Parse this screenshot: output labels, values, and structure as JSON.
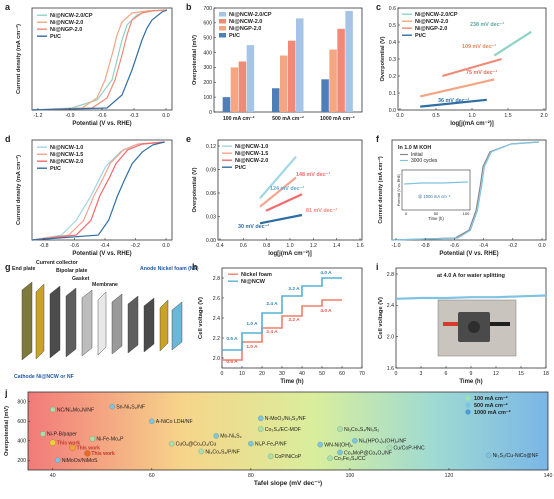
{
  "colors": {
    "ncw_cp": "#8fd3c7",
    "ncw": "#f4a582",
    "ngp": "#f08a76",
    "ptc": "#2f6ea5",
    "ncw1": "#9fd6e6",
    "ncw15": "#f6a38f",
    "ncw20": "#f26b6b",
    "nickel_foam": "#f07f6b",
    "ni_ncw_h": "#55b0d6",
    "bubble_green": "#a8e0b0",
    "bubble_blue": "#7ec3e3"
  },
  "panels": {
    "a": {
      "letter": "a",
      "legend": [
        "Ni@NCW-2.0/CP",
        "Ni@NCW-2.0",
        "Ni@NGP-2.0",
        "Pt/C"
      ],
      "xlabel": "Potential (V vs. RHE)",
      "ylabel": "Current density (mA cm⁻²)",
      "xticks": [
        "-1.2",
        "-0.9",
        "-0.6",
        "-0.3",
        "0.0"
      ],
      "yticks": []
    },
    "b": {
      "letter": "b",
      "legend": [
        "Ni@NCW-2.0/CP",
        "Ni@NCW-2.0",
        "Ni@NGP-2.0",
        "Pt/C"
      ],
      "ylabel": "Overpotential (mV)",
      "yticks": [
        "0",
        "100",
        "200",
        "300",
        "400",
        "500",
        "600",
        "700"
      ],
      "categories": [
        "100 mA cm⁻²",
        "500 mA cm⁻²",
        "1000 mA cm⁻²"
      ]
    },
    "c": {
      "letter": "c",
      "legend": [
        "Ni@NCW-2.0/CP",
        "Ni@NCW-2.0",
        "Ni@NGP-2.0",
        "Pt/C"
      ],
      "xlabel": "log[j(mA cm⁻²)]",
      "ylabel": "Overpotential (V)",
      "xticks": [
        "0.0",
        "0.5",
        "1.0",
        "1.5",
        "2.0"
      ],
      "yticks": [
        "0.0",
        "0.1",
        "0.2",
        "0.3",
        "0.4",
        "0.5",
        "0.6"
      ],
      "annotations": [
        "238 mV dec⁻¹",
        "109 mV dec⁻¹",
        "75 mV dec⁻¹",
        "36 mV dec⁻¹"
      ]
    },
    "d": {
      "letter": "d",
      "legend": [
        "Ni@NCW-1.0",
        "Ni@NCW-1.5",
        "Ni@NCW-2.0",
        "Pt/C"
      ],
      "xlabel": "Potential (V vs. RHE)",
      "ylabel": "Current density (mA cm⁻²)",
      "xticks": [
        "-0.8",
        "-0.6",
        "-0.4",
        "-0.2",
        "0.0"
      ],
      "yticks": []
    },
    "e": {
      "letter": "e",
      "legend": [
        "Ni@NCW-1.0",
        "Ni@NCW-1.5",
        "Ni@NCW-2.0",
        "Pt/C"
      ],
      "xlabel": "log[j(mA cm⁻²)]",
      "ylabel": "Overpotential (V)",
      "xticks": [
        "0.4",
        "0.6",
        "0.8",
        "1.0",
        "1.2",
        "1.4",
        "1.6"
      ],
      "yticks": [
        "0.00",
        "0.03",
        "0.06",
        "0.09",
        "0.12"
      ],
      "annotations": [
        "148 mV dec⁻¹",
        "124 mV dec⁻¹",
        "81 mV dec⁻¹",
        "30 mV dec⁻¹"
      ]
    },
    "f": {
      "letter": "f",
      "label": "In 1.0 M KOH",
      "legend": [
        "Initial",
        "3000 cycles"
      ],
      "xlabel": "Potential (V vs. RHE)",
      "ylabel": "Current density (mA cm⁻²)",
      "xticks": [
        "-1.0",
        "-0.8",
        "-0.6",
        "-0.4",
        "-0.2",
        "0.0"
      ],
      "inset_label": "@ 1000 mA cm⁻²",
      "inset_xlabel": "Time (h)",
      "inset_ylabel": "Potential (V vs. RHE)",
      "inset_xticks": [
        "0",
        "50",
        "100"
      ]
    },
    "g": {
      "letter": "g",
      "labels": [
        "End plate",
        "Current collector",
        "Bipolar plate",
        "Gasket",
        "Membrane",
        "Anode Nickel foam (NF)",
        "Cathode Ni@NCW or NF"
      ]
    },
    "h": {
      "letter": "h",
      "legend": [
        "Nickel foam",
        "Ni@NCW"
      ],
      "xlabel": "Time (h)",
      "ylabel": "Cell voltage (V)",
      "xticks": [
        "0",
        "10",
        "20",
        "30",
        "40",
        "50",
        "60",
        "70"
      ],
      "yticks": [
        "2.0",
        "2.2",
        "2.4",
        "2.6",
        "2.8"
      ],
      "step_labels": [
        "0.5 A",
        "1.0 A",
        "2.4 A",
        "3.2 A",
        "4.0 A"
      ]
    },
    "i": {
      "letter": "i",
      "title": "at 4.0 A for water splitting",
      "xlabel": "Time (h)",
      "ylabel": "Cell voltage (V)",
      "xticks": [
        "0",
        "3",
        "6",
        "9",
        "12",
        "15",
        "18"
      ],
      "yticks": [
        "1.6",
        "2.0",
        "2.4",
        "2.8"
      ]
    },
    "j": {
      "letter": "j",
      "xlabel": "Tafel slope (mV dec⁻¹)",
      "ylabel": "Overpotential (mV)",
      "xticks": [
        "40",
        "60",
        "80",
        "100",
        "120",
        "140"
      ],
      "yticks": [
        "200",
        "400",
        "600",
        "800"
      ],
      "legend": [
        "100 mA cm⁻²",
        "500 mA cm⁻²",
        "1000 mA cm⁻²"
      ],
      "this_work": "This work"
    }
  },
  "chart_data": [
    {
      "type": "line",
      "panel": "a",
      "xlabel": "Potential (V vs. RHE)",
      "ylabel": "Current density (mA cm⁻²)",
      "xlim": [
        -1.35,
        0.05
      ],
      "series": [
        {
          "name": "Ni@NCW-2.0/CP",
          "color": "#8fd3c7",
          "x": [
            -1.35,
            -0.95,
            -0.7,
            -0.55,
            -0.5,
            -0.45,
            -0.4,
            -0.3,
            -0.2,
            0.0
          ],
          "y": [
            0.0,
            0.02,
            0.1,
            0.3,
            0.5,
            0.7,
            0.85,
            0.95,
            0.99,
            1.0
          ]
        },
        {
          "name": "Ni@NCW-2.0",
          "color": "#f4a582",
          "x": [
            -1.35,
            -0.85,
            -0.7,
            -0.62,
            -0.55,
            -0.5,
            -0.45,
            -0.35,
            -0.2,
            0.0
          ],
          "y": [
            0.0,
            0.02,
            0.12,
            0.3,
            0.55,
            0.75,
            0.88,
            0.97,
            0.99,
            1.0
          ]
        },
        {
          "name": "Ni@NGP-2.0",
          "color": "#f08a76",
          "x": [
            -1.35,
            -0.75,
            -0.6,
            -0.52,
            -0.45,
            -0.4,
            -0.35,
            -0.25,
            -0.15,
            0.0
          ],
          "y": [
            0.0,
            0.02,
            0.12,
            0.3,
            0.55,
            0.75,
            0.9,
            0.97,
            0.99,
            1.0
          ]
        },
        {
          "name": "Pt/C",
          "color": "#2f6ea5",
          "x": [
            -1.35,
            -0.6,
            -0.45,
            -0.35,
            -0.3,
            -0.25,
            -0.2,
            -0.15,
            -0.05,
            0.0
          ],
          "y": [
            0.0,
            0.02,
            0.15,
            0.4,
            0.55,
            0.7,
            0.82,
            0.9,
            0.98,
            1.0
          ]
        }
      ]
    },
    {
      "type": "bar",
      "panel": "b",
      "ylabel": "Overpotential (mV)",
      "ylim": [
        0,
        700
      ],
      "categories": [
        "100 mA cm⁻²",
        "500 mA cm⁻²",
        "1000 mA cm⁻²"
      ],
      "series": [
        {
          "name": "Pt/C",
          "values": [
            100,
            160,
            220
          ]
        },
        {
          "name": "Ni@NGP-2.0",
          "values": [
            300,
            380,
            420
          ]
        },
        {
          "name": "Ni@NCW-2.0",
          "values": [
            340,
            480,
            560
          ]
        },
        {
          "name": "Ni@NCW-2.0/CP",
          "values": [
            450,
            630,
            680
          ]
        }
      ]
    },
    {
      "type": "line",
      "panel": "c",
      "xlabel": "log[j(mA cm⁻²)]",
      "ylabel": "Overpotential (V)",
      "xlim": [
        0.0,
        2.0
      ],
      "ylim": [
        0.0,
        0.6
      ],
      "series": [
        {
          "name": "Pt/C",
          "x": [
            0.3,
            1.2
          ],
          "y": [
            0.02,
            0.06
          ]
        },
        {
          "name": "Ni@NGP-2.0",
          "x": [
            0.3,
            1.3
          ],
          "y": [
            0.08,
            0.18
          ]
        },
        {
          "name": "Ni@NCW-2.0",
          "x": [
            0.6,
            1.4
          ],
          "y": [
            0.2,
            0.3
          ]
        },
        {
          "name": "Ni@NCW-2.0/CP",
          "x": [
            1.3,
            1.8
          ],
          "y": [
            0.32,
            0.46
          ]
        }
      ]
    },
    {
      "type": "line",
      "panel": "d",
      "xlabel": "Potential (V vs. RHE)",
      "ylabel": "Current density (mA cm⁻²)",
      "xlim": [
        -0.9,
        0.05
      ],
      "series": [
        {
          "name": "Ni@NCW-1.0",
          "x": [
            -0.9,
            -0.7,
            -0.6,
            -0.5,
            -0.45,
            -0.4,
            -0.3,
            -0.2,
            0.0
          ],
          "y": [
            0.0,
            0.05,
            0.2,
            0.45,
            0.6,
            0.75,
            0.9,
            0.97,
            1.0
          ]
        },
        {
          "name": "Ni@NCW-1.5",
          "x": [
            -0.9,
            -0.65,
            -0.55,
            -0.48,
            -0.42,
            -0.37,
            -0.28,
            -0.18,
            0.0
          ],
          "y": [
            0.0,
            0.05,
            0.2,
            0.45,
            0.62,
            0.78,
            0.92,
            0.98,
            1.0
          ]
        },
        {
          "name": "Ni@NCW-2.0",
          "x": [
            -0.9,
            -0.6,
            -0.5,
            -0.44,
            -0.38,
            -0.33,
            -0.25,
            -0.15,
            0.0
          ],
          "y": [
            0.0,
            0.05,
            0.2,
            0.45,
            0.62,
            0.78,
            0.92,
            0.98,
            1.0
          ]
        },
        {
          "name": "Pt/C",
          "x": [
            -0.9,
            -0.45,
            -0.38,
            -0.32,
            -0.27,
            -0.22,
            -0.15,
            -0.08,
            0.0
          ],
          "y": [
            0.0,
            0.05,
            0.2,
            0.45,
            0.62,
            0.78,
            0.9,
            0.97,
            1.0
          ]
        }
      ]
    },
    {
      "type": "line",
      "panel": "e",
      "xlabel": "log[j(mA cm⁻²)]",
      "ylabel": "Overpotential (V)",
      "xlim": [
        0.4,
        1.6
      ],
      "ylim": [
        0.0,
        0.12
      ],
      "series": [
        {
          "name": "Ni@NCW-1.0",
          "x": [
            0.75,
            1.05
          ],
          "y": [
            0.05,
            0.1
          ]
        },
        {
          "name": "Ni@NCW-1.5",
          "x": [
            0.75,
            1.05
          ],
          "y": [
            0.04,
            0.075
          ]
        },
        {
          "name": "Ni@NCW-2.0",
          "x": [
            0.8,
            1.1
          ],
          "y": [
            0.035,
            0.055
          ]
        },
        {
          "name": "Pt/C",
          "x": [
            0.75,
            1.1
          ],
          "y": [
            0.02,
            0.03
          ]
        }
      ]
    },
    {
      "type": "line",
      "panel": "f",
      "xlabel": "Potential (V vs. RHE)",
      "ylabel": "Current density (mA cm⁻²)",
      "xlim": [
        -1.05,
        0.05
      ],
      "series": [
        {
          "name": "Initial",
          "x": [
            -1.05,
            -0.6,
            -0.5,
            -0.45,
            -0.42,
            -0.4,
            -0.35,
            -0.2,
            0.0
          ],
          "y": [
            0.0,
            0.02,
            0.1,
            0.3,
            0.55,
            0.75,
            0.9,
            0.98,
            1.0
          ]
        },
        {
          "name": "3000 cycles",
          "x": [
            -1.05,
            -0.58,
            -0.49,
            -0.44,
            -0.41,
            -0.39,
            -0.34,
            -0.2,
            0.0
          ],
          "y": [
            0.0,
            0.02,
            0.1,
            0.3,
            0.55,
            0.75,
            0.9,
            0.98,
            1.0
          ]
        }
      ]
    },
    {
      "type": "line",
      "panel": "h",
      "xlabel": "Time (h)",
      "ylabel": "Cell voltage (V)",
      "xlim": [
        0,
        70
      ],
      "ylim": [
        1.8,
        2.8
      ],
      "series": [
        {
          "name": "Nickel foam",
          "x": [
            0,
            10,
            10,
            20,
            20,
            30,
            30,
            40,
            40,
            50,
            50,
            60
          ],
          "y": [
            1.88,
            1.88,
            2.06,
            2.06,
            2.2,
            2.2,
            2.32,
            2.32,
            2.42,
            2.42,
            2.48,
            2.48
          ]
        },
        {
          "name": "Ni@NCW",
          "x": [
            0,
            10,
            10,
            20,
            20,
            30,
            30,
            40,
            40,
            50,
            50,
            60
          ],
          "y": [
            1.98,
            1.98,
            2.15,
            2.15,
            2.35,
            2.35,
            2.52,
            2.52,
            2.62,
            2.62,
            2.7,
            2.7
          ]
        }
      ]
    },
    {
      "type": "line",
      "panel": "i",
      "xlabel": "Time (h)",
      "ylabel": "Cell voltage (V)",
      "xlim": [
        0,
        18
      ],
      "ylim": [
        1.6,
        2.8
      ],
      "series": [
        {
          "name": "",
          "x": [
            0,
            3,
            6,
            9,
            12,
            15,
            18
          ],
          "y": [
            2.43,
            2.44,
            2.44,
            2.45,
            2.45,
            2.46,
            2.47
          ]
        }
      ]
    },
    {
      "type": "scatter",
      "panel": "j",
      "xlabel": "Tafel slope (mV dec⁻¹)",
      "ylabel": "Overpotential (mV)",
      "xlim": [
        35,
        140
      ],
      "ylim": [
        100,
        900
      ],
      "points": [
        {
          "label": "NC/Ni₃Mo₃N/NF",
          "x": 40,
          "y": 720
        },
        {
          "label": "Sn-Ni₃S₂/NF",
          "x": 52,
          "y": 750
        },
        {
          "label": "Ni-P-B/paper",
          "x": 38,
          "y": 470
        },
        {
          "label": "NiMoOx/NiMoS",
          "x": 41,
          "y": 200
        },
        {
          "label": "Ni-Fe-Mo₂P",
          "x": 48,
          "y": 420
        },
        {
          "label": "A-NiCo LDH/NF",
          "x": 60,
          "y": 600
        },
        {
          "label": "CuOₓ@Co₃O₄/Cu",
          "x": 64,
          "y": 370
        },
        {
          "label": "Mo-Ni₃S₂",
          "x": 73,
          "y": 450
        },
        {
          "label": "Ni₃Co₂S₄/P/NF",
          "x": 70,
          "y": 290
        },
        {
          "label": "N-MoO₂/Ni₃S₂/NF",
          "x": 82,
          "y": 630
        },
        {
          "label": "Co₃S₄/EC-MOF",
          "x": 82,
          "y": 520
        },
        {
          "label": "Ni₂P-Fe₂P/NF",
          "x": 80,
          "y": 370
        },
        {
          "label": "CoP/NiCoP",
          "x": 84,
          "y": 240
        },
        {
          "label": "WN-Ni(OH)₂",
          "x": 94,
          "y": 360
        },
        {
          "label": "Ni₃Co₄S₄/Ni₃S₂",
          "x": 98,
          "y": 520
        },
        {
          "label": "Ni₃(HPO₄)₂(OH)₂/NF",
          "x": 101,
          "y": 400
        },
        {
          "label": "Co₃Fe₃S₄/CC",
          "x": 96,
          "y": 220
        },
        {
          "label": "Co₃MoP@Co₃O₄/NF",
          "x": 98,
          "y": 280
        },
        {
          "label": "Cu/CoP-HNC",
          "x": 108,
          "y": 330
        },
        {
          "label": "Ni₃S₂/Cu-NiCo@NF",
          "x": 128,
          "y": 250
        }
      ],
      "this_work": [
        {
          "x": 40,
          "y": 380,
          "series": "100 mA cm⁻²"
        },
        {
          "x": 44,
          "y": 330,
          "series": "500 mA cm⁻²"
        },
        {
          "x": 47,
          "y": 270,
          "series": "1000 mA cm⁻²"
        }
      ]
    }
  ]
}
